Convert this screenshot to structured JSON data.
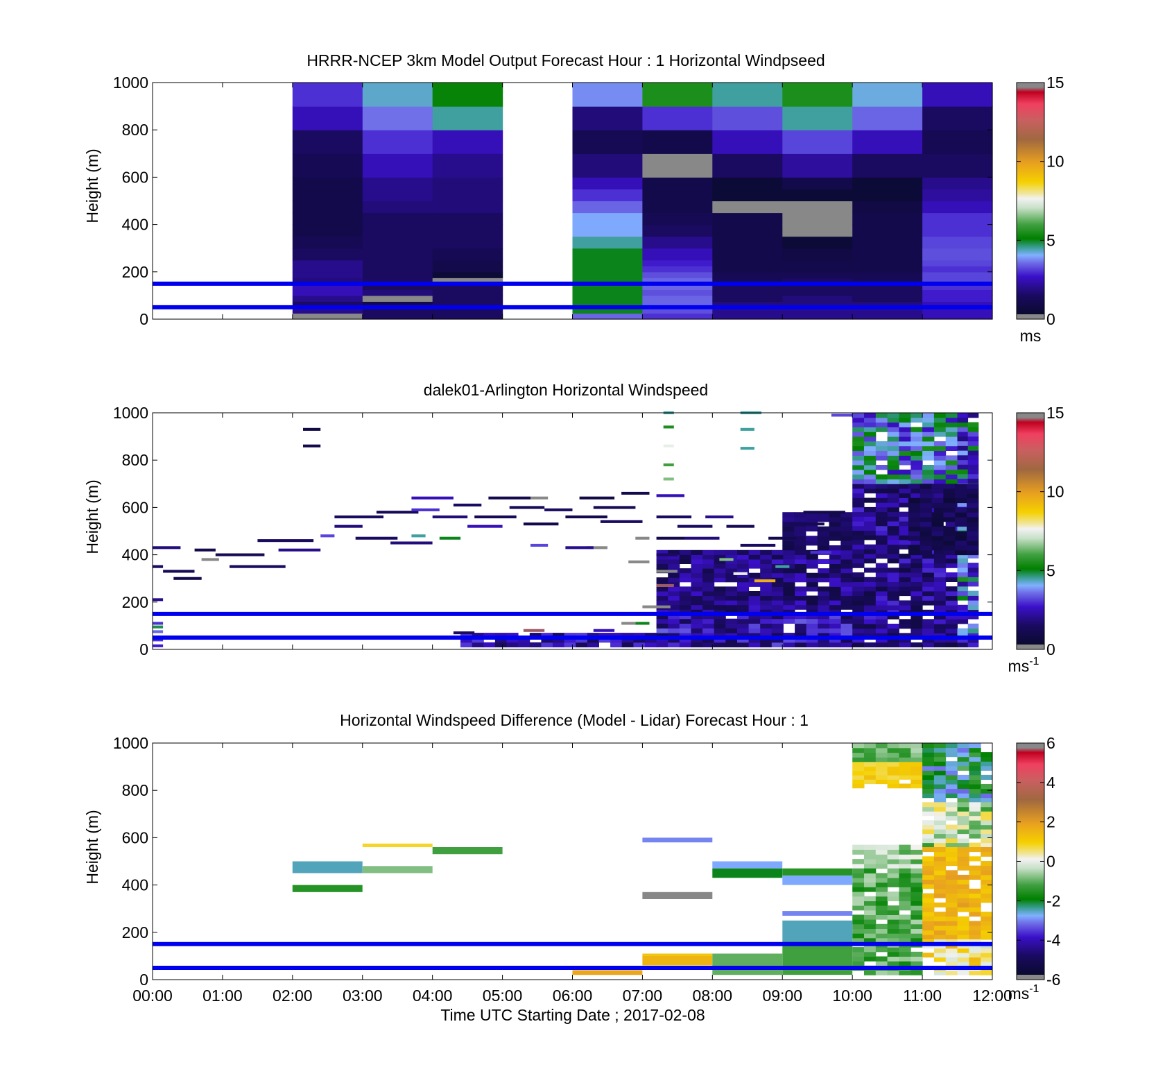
{
  "chart_data": [
    {
      "type": "heatmap",
      "title": "HRRR-NCEP 3km Model Output   Forecast Hour : 1 Horizontal Windpseed",
      "xlabel": "",
      "ylabel": "Height (m)",
      "xlim": [
        0,
        12
      ],
      "ylim": [
        0,
        1000
      ],
      "yticks": [
        "0",
        "200",
        "400",
        "600",
        "800",
        "1000"
      ],
      "colorbar": {
        "range": [
          0,
          15
        ],
        "ticks": [
          "0",
          "5",
          "10",
          "15"
        ],
        "unit": "ms",
        "unit_exp": ""
      },
      "reference_lines_m": [
        150,
        50
      ],
      "line_color": "#0000ee",
      "column_edges_hours": [
        2,
        3,
        4,
        5,
        6,
        7,
        8,
        9,
        10,
        11,
        12
      ],
      "layer_edges_m": [
        0,
        25,
        50,
        75,
        100,
        125,
        150,
        175,
        200,
        225,
        250,
        300,
        350,
        400,
        450,
        500,
        550,
        600,
        700,
        800,
        900,
        1000
      ],
      "missing_columns": [
        3
      ],
      "values": [
        [
          0.2,
          2.0,
          1.5,
          2.0,
          2.5,
          2.5,
          1.8,
          2.0,
          2.0,
          2.0,
          1.5,
          1.2,
          1.0,
          1.0,
          1.0,
          1.0,
          1.0,
          1.2,
          1.5,
          2.5,
          3.0
        ],
        [
          1.5,
          1.5,
          1.0,
          0.2,
          1.8,
          1.5,
          1.5,
          1.5,
          1.5,
          1.5,
          1.5,
          1.5,
          1.5,
          1.5,
          1.8,
          2.0,
          2.0,
          2.5,
          3.0,
          3.6,
          4.3
        ],
        [
          1.5,
          1.5,
          1.5,
          1.5,
          1.5,
          1.5,
          0.2,
          0.5,
          1.0,
          1.0,
          1.2,
          1.5,
          1.5,
          1.5,
          1.8,
          1.8,
          1.8,
          2.0,
          2.5,
          4.5,
          5.2
        ],
        [
          null,
          null,
          null,
          null,
          null,
          null,
          null,
          null,
          null,
          null,
          null,
          null,
          null,
          null,
          null,
          null,
          null,
          null,
          null,
          null,
          null
        ],
        [
          3.5,
          5.0,
          5.0,
          5.0,
          5.0,
          5.0,
          5.0,
          5.0,
          5.0,
          5.0,
          5.0,
          4.5,
          4.0,
          4.0,
          3.5,
          3.0,
          2.5,
          1.8,
          1.2,
          1.8,
          3.8
        ],
        [
          3.0,
          3.3,
          3.5,
          3.5,
          3.3,
          3.5,
          3.5,
          3.3,
          3.0,
          2.8,
          2.5,
          2.0,
          1.5,
          1.2,
          1.0,
          1.0,
          1.0,
          0.2,
          1.0,
          3.0,
          5.5
        ],
        [
          2.0,
          2.0,
          1.8,
          1.5,
          1.5,
          1.5,
          1.2,
          1.2,
          1.0,
          1.0,
          1.0,
          1.0,
          1.0,
          1.0,
          0.2,
          0.5,
          0.5,
          1.5,
          2.5,
          3.3,
          4.5
        ],
        [
          2.0,
          2.0,
          1.8,
          1.8,
          1.5,
          1.5,
          1.5,
          1.2,
          1.0,
          1.0,
          0.8,
          0.5,
          0.2,
          0.2,
          0.2,
          0.5,
          1.0,
          2.2,
          3.2,
          4.5,
          5.5
        ],
        [
          2.0,
          2.0,
          1.8,
          1.5,
          1.5,
          1.5,
          1.2,
          1.2,
          1.0,
          1.0,
          1.0,
          1.0,
          1.0,
          1.0,
          0.8,
          0.5,
          0.5,
          1.5,
          2.5,
          3.5,
          4.2
        ],
        [
          2.5,
          2.5,
          2.5,
          2.8,
          2.8,
          3.0,
          3.2,
          3.2,
          3.0,
          3.2,
          3.3,
          3.2,
          3.0,
          3.0,
          2.5,
          2.2,
          2.0,
          1.5,
          1.2,
          1.5,
          2.5
        ]
      ]
    },
    {
      "type": "heatmap",
      "title": "dalek01-Arlington  Horizontal Windspeed",
      "xlabel": "",
      "ylabel": "Height (m)",
      "xlim": [
        0,
        12
      ],
      "ylim": [
        0,
        1000
      ],
      "yticks": [
        "0",
        "200",
        "400",
        "600",
        "800",
        "1000"
      ],
      "colorbar": {
        "range": [
          0,
          15
        ],
        "ticks": [
          "0",
          "5",
          "10",
          "15"
        ],
        "unit": "ms",
        "unit_exp": "-1"
      },
      "reference_lines_m": [
        150,
        50
      ],
      "line_color": "#0000ee",
      "segments": [
        {
          "t0": 0.0,
          "t1": 0.4,
          "h": 430,
          "v": 1.8
        },
        {
          "t0": 0.0,
          "t1": 0.15,
          "h": 350,
          "v": 1.5
        },
        {
          "t0": 0.0,
          "t1": 0.15,
          "h": 210,
          "v": 2.0
        },
        {
          "t0": 0.15,
          "t1": 0.6,
          "h": 330,
          "v": 1.2
        },
        {
          "t0": 0.3,
          "t1": 0.7,
          "h": 300,
          "v": 1.0
        },
        {
          "t0": 0.6,
          "t1": 0.9,
          "h": 420,
          "v": 1.0
        },
        {
          "t0": 0.7,
          "t1": 0.95,
          "h": 380,
          "v": 0.2
        },
        {
          "t0": 0.9,
          "t1": 1.6,
          "h": 400,
          "v": 1.2
        },
        {
          "t0": 1.1,
          "t1": 1.9,
          "h": 350,
          "v": 1.5
        },
        {
          "t0": 1.5,
          "t1": 2.3,
          "h": 460,
          "v": 1.5
        },
        {
          "t0": 1.8,
          "t1": 2.4,
          "h": 420,
          "v": 2.0
        },
        {
          "t0": 2.15,
          "t1": 2.4,
          "h": 930,
          "v": 0.8
        },
        {
          "t0": 2.15,
          "t1": 2.4,
          "h": 860,
          "v": 1.0
        },
        {
          "t0": 2.4,
          "t1": 2.6,
          "h": 480,
          "v": 3.2
        },
        {
          "t0": 2.6,
          "t1": 3.3,
          "h": 560,
          "v": 1.5
        },
        {
          "t0": 2.6,
          "t1": 3.0,
          "h": 520,
          "v": 1.8
        },
        {
          "t0": 2.9,
          "t1": 3.5,
          "h": 470,
          "v": 1.5
        },
        {
          "t0": 3.2,
          "t1": 3.8,
          "h": 580,
          "v": 1.2
        },
        {
          "t0": 3.4,
          "t1": 4.0,
          "h": 450,
          "v": 1.8
        },
        {
          "t0": 3.7,
          "t1": 4.3,
          "h": 640,
          "v": 2.5
        },
        {
          "t0": 3.7,
          "t1": 4.1,
          "h": 590,
          "v": 3.0
        },
        {
          "t0": 3.7,
          "t1": 3.9,
          "h": 480,
          "v": 4.5
        },
        {
          "t0": 4.0,
          "t1": 4.5,
          "h": 560,
          "v": 1.8
        },
        {
          "t0": 4.1,
          "t1": 4.4,
          "h": 470,
          "v": 5.0
        },
        {
          "t0": 4.3,
          "t1": 4.7,
          "h": 610,
          "v": 1.5
        },
        {
          "t0": 4.5,
          "t1": 5.0,
          "h": 520,
          "v": 2.5
        },
        {
          "t0": 4.6,
          "t1": 5.2,
          "h": 560,
          "v": 1.2
        },
        {
          "t0": 4.8,
          "t1": 5.4,
          "h": 640,
          "v": 1.0
        },
        {
          "t0": 5.1,
          "t1": 5.6,
          "h": 600,
          "v": 1.3
        },
        {
          "t0": 5.3,
          "t1": 5.8,
          "h": 530,
          "v": 1.0
        },
        {
          "t0": 5.4,
          "t1": 5.65,
          "h": 640,
          "v": 0.2
        },
        {
          "t0": 5.4,
          "t1": 5.65,
          "h": 440,
          "v": 3.2
        },
        {
          "t0": 5.6,
          "t1": 6.0,
          "h": 590,
          "v": 1.5
        },
        {
          "t0": 5.9,
          "t1": 6.5,
          "h": 560,
          "v": 1.0
        },
        {
          "t0": 6.1,
          "t1": 6.6,
          "h": 640,
          "v": 0.8
        },
        {
          "t0": 6.3,
          "t1": 6.9,
          "h": 600,
          "v": 1.2
        },
        {
          "t0": 6.4,
          "t1": 7.0,
          "h": 540,
          "v": 1.5
        },
        {
          "t0": 6.7,
          "t1": 7.1,
          "h": 660,
          "v": 1.0
        },
        {
          "t0": 6.9,
          "t1": 7.1,
          "h": 470,
          "v": 0.2
        },
        {
          "t0": 6.2,
          "t1": 6.5,
          "h": 430,
          "v": 0.2
        },
        {
          "t0": 5.9,
          "t1": 6.3,
          "h": 430,
          "v": 2.0
        },
        {
          "t0": 6.8,
          "t1": 7.1,
          "h": 370,
          "v": 0.2
        },
        {
          "t0": 7.2,
          "t1": 7.5,
          "h": 330,
          "v": 0.2
        },
        {
          "t0": 7.2,
          "t1": 7.45,
          "h": 270,
          "v": 14.6
        },
        {
          "t0": 7.3,
          "t1": 7.45,
          "h": 1000,
          "v": 4.5
        },
        {
          "t0": 7.3,
          "t1": 7.45,
          "h": 940,
          "v": 5.5
        },
        {
          "t0": 7.3,
          "t1": 7.45,
          "h": 860,
          "v": 7.5
        },
        {
          "t0": 7.3,
          "t1": 7.45,
          "h": 780,
          "v": 6.0
        },
        {
          "t0": 7.3,
          "t1": 7.45,
          "h": 720,
          "v": 6.5
        },
        {
          "t0": 7.2,
          "t1": 7.6,
          "h": 650,
          "v": 2.5
        },
        {
          "t0": 7.2,
          "t1": 7.7,
          "h": 560,
          "v": 1.5
        },
        {
          "t0": 7.2,
          "t1": 7.6,
          "h": 470,
          "v": 1.0
        },
        {
          "t0": 7.2,
          "t1": 7.5,
          "h": 400,
          "v": 1.5
        },
        {
          "t0": 7.5,
          "t1": 8.0,
          "h": 520,
          "v": 1.5
        },
        {
          "t0": 7.6,
          "t1": 8.1,
          "h": 470,
          "v": 1.8
        },
        {
          "t0": 7.9,
          "t1": 8.3,
          "h": 560,
          "v": 2.0
        },
        {
          "t0": 8.2,
          "t1": 8.6,
          "h": 520,
          "v": 1.2
        },
        {
          "t0": 8.4,
          "t1": 8.9,
          "h": 440,
          "v": 1.5
        },
        {
          "t0": 8.4,
          "t1": 8.7,
          "h": 1000,
          "v": 4.5
        },
        {
          "t0": 8.4,
          "t1": 8.6,
          "h": 930,
          "v": 4.5
        },
        {
          "t0": 8.4,
          "t1": 8.6,
          "h": 850,
          "v": 4.5
        },
        {
          "t0": 8.1,
          "t1": 8.3,
          "h": 380,
          "v": 6.5
        },
        {
          "t0": 8.3,
          "t1": 8.5,
          "h": 320,
          "v": 7.5
        },
        {
          "t0": 8.6,
          "t1": 8.9,
          "h": 290,
          "v": 9.5
        },
        {
          "t0": 8.8,
          "t1": 9.2,
          "h": 470,
          "v": 1.0
        },
        {
          "t0": 8.9,
          "t1": 9.1,
          "h": 350,
          "v": 4.5
        },
        {
          "t0": 9.1,
          "t1": 9.6,
          "h": 530,
          "v": 1.2
        },
        {
          "t0": 9.3,
          "t1": 9.9,
          "h": 580,
          "v": 1.0
        },
        {
          "t0": 9.4,
          "t1": 9.7,
          "h": 410,
          "v": 3.0
        },
        {
          "t0": 9.7,
          "t1": 10.1,
          "h": 990,
          "v": 3.2
        },
        {
          "t0": 7.0,
          "t1": 7.4,
          "h": 180,
          "v": 0.2
        },
        {
          "t0": 6.7,
          "t1": 6.9,
          "h": 110,
          "v": 0.2
        },
        {
          "t0": 6.9,
          "t1": 7.1,
          "h": 110,
          "v": 5.0
        },
        {
          "t0": 6.3,
          "t1": 6.6,
          "h": 80,
          "v": 2.5
        },
        {
          "t0": 4.3,
          "t1": 4.6,
          "h": 70,
          "v": 1.5
        },
        {
          "t0": 5.3,
          "t1": 5.6,
          "h": 80,
          "v": 14.6
        },
        {
          "t0": 0.0,
          "t1": 0.15,
          "h": 110,
          "v": 3.0
        },
        {
          "t0": 0.0,
          "t1": 0.15,
          "h": 95,
          "v": 4.8
        },
        {
          "t0": 0.0,
          "t1": 0.15,
          "h": 75,
          "v": 3.5
        },
        {
          "t0": 0.0,
          "t1": 0.15,
          "h": 40,
          "v": 3.0
        },
        {
          "t0": 0.0,
          "t1": 0.15,
          "h": 15,
          "v": 2.8
        }
      ],
      "regions": [
        {
          "t0": 4.4,
          "t1": 7.2,
          "h0": 10,
          "h1": 70,
          "v0": 1.2,
          "v1": 3.2,
          "seed": 3
        },
        {
          "t0": 7.2,
          "t1": 10.0,
          "h0": 10,
          "h1": 150,
          "v0": 1.0,
          "v1": 3.5,
          "seed": 5
        },
        {
          "t0": 7.2,
          "t1": 10.0,
          "h0": 150,
          "h1": 420,
          "v0": 0.8,
          "v1": 2.8,
          "seed": 8
        },
        {
          "t0": 9.0,
          "t1": 10.0,
          "h0": 420,
          "h1": 580,
          "v0": 0.8,
          "v1": 2.0,
          "seed": 12
        },
        {
          "t0": 10.0,
          "t1": 11.5,
          "h0": 10,
          "h1": 700,
          "v0": 0.8,
          "v1": 3.0,
          "seed": 17
        },
        {
          "t0": 10.0,
          "t1": 11.5,
          "h0": 700,
          "h1": 1000,
          "v0": 2.5,
          "v1": 5.5,
          "seed": 21
        },
        {
          "t0": 11.5,
          "t1": 11.8,
          "h0": 10,
          "h1": 1000,
          "v0": 1.5,
          "v1": 5.5,
          "seed": 27
        },
        {
          "t0": 10.8,
          "t1": 11.8,
          "h0": 400,
          "h1": 700,
          "v0": 0.5,
          "v1": 1.8,
          "seed": 31
        }
      ]
    },
    {
      "type": "heatmap",
      "title": "Horizontal Windspeed Difference (Model - Lidar) Forecast Hour : 1",
      "xlabel": "Time UTC  Starting Date ; 2017-02-08",
      "ylabel": "Height (m)",
      "xlim": [
        0,
        12
      ],
      "ylim": [
        0,
        1000
      ],
      "xticks": [
        "00:00",
        "01:00",
        "02:00",
        "03:00",
        "04:00",
        "05:00",
        "06:00",
        "07:00",
        "08:00",
        "09:00",
        "10:00",
        "11:00",
        "12:00"
      ],
      "yticks": [
        "0",
        "200",
        "400",
        "600",
        "800",
        "1000"
      ],
      "colorbar": {
        "range": [
          -6,
          6
        ],
        "ticks": [
          "-6",
          "-4",
          "-2",
          "0",
          "2",
          "4",
          "6"
        ],
        "unit": "ms",
        "unit_exp": "-1"
      },
      "reference_lines_m": [
        150,
        50
      ],
      "line_color": "#0000ee",
      "segments": [
        {
          "t0": 2,
          "t1": 3,
          "h0": 450,
          "h1": 500,
          "v": -2.5
        },
        {
          "t0": 2,
          "t1": 3,
          "h0": 370,
          "h1": 400,
          "v": -1.5
        },
        {
          "t0": 3,
          "t1": 4,
          "h0": 560,
          "h1": 575,
          "v": 0.8
        },
        {
          "t0": 3,
          "t1": 4,
          "h0": 450,
          "h1": 480,
          "v": -0.8
        },
        {
          "t0": 4,
          "t1": 5,
          "h0": 530,
          "h1": 560,
          "v": -1.2
        },
        {
          "t0": 6,
          "t1": 7,
          "h0": 20,
          "h1": 40,
          "v": 1.8
        },
        {
          "t0": 7,
          "t1": 8,
          "h0": 580,
          "h1": 600,
          "v": -3.0
        },
        {
          "t0": 7,
          "t1": 8,
          "h0": 340,
          "h1": 370,
          "v": -6.0
        },
        {
          "t0": 7,
          "t1": 8,
          "h0": 60,
          "h1": 100,
          "v": 1.5
        },
        {
          "t0": 7,
          "t1": 8,
          "h0": 100,
          "h1": 110,
          "v": 1.2
        },
        {
          "t0": 8,
          "t1": 9,
          "h0": 470,
          "h1": 500,
          "v": -2.8
        },
        {
          "t0": 8,
          "t1": 9,
          "h0": 430,
          "h1": 470,
          "v": -2.0
        },
        {
          "t0": 8,
          "t1": 9,
          "h0": 20,
          "h1": 110,
          "v": -1.0
        },
        {
          "t0": 9,
          "t1": 10,
          "h0": 440,
          "h1": 470,
          "v": -1.5
        },
        {
          "t0": 9,
          "t1": 10,
          "h0": 400,
          "h1": 440,
          "v": -2.8
        },
        {
          "t0": 9,
          "t1": 10,
          "h0": 270,
          "h1": 290,
          "v": -3.0
        },
        {
          "t0": 9,
          "t1": 10,
          "h0": 160,
          "h1": 250,
          "v": -2.5
        },
        {
          "t0": 9,
          "t1": 10,
          "h0": 20,
          "h1": 160,
          "v": -1.2
        }
      ],
      "regions": [
        {
          "t0": 10,
          "t1": 11,
          "h0": 920,
          "h1": 1000,
          "v0": -1.5,
          "v1": -0.5,
          "seed": 41
        },
        {
          "t0": 10,
          "t1": 11,
          "h0": 810,
          "h1": 920,
          "v0": 0.6,
          "v1": 1.3,
          "seed": 43
        },
        {
          "t0": 10,
          "t1": 11,
          "h0": 470,
          "h1": 570,
          "v0": -1.2,
          "v1": 0.2,
          "seed": 47
        },
        {
          "t0": 10,
          "t1": 11,
          "h0": 20,
          "h1": 470,
          "v0": -1.8,
          "v1": -0.5,
          "seed": 53
        },
        {
          "t0": 11,
          "t1": 12,
          "h0": 750,
          "h1": 1000,
          "v0": -3.2,
          "v1": -1.0,
          "seed": 59
        },
        {
          "t0": 11,
          "t1": 12,
          "h0": 560,
          "h1": 750,
          "v0": -1.5,
          "v1": 0.8,
          "seed": 61
        },
        {
          "t0": 11,
          "t1": 12,
          "h0": 170,
          "h1": 560,
          "v0": 1.0,
          "v1": 2.0,
          "seed": 67
        },
        {
          "t0": 11,
          "t1": 12,
          "h0": 20,
          "h1": 170,
          "v0": -0.5,
          "v1": 1.5,
          "seed": 71
        }
      ]
    }
  ]
}
